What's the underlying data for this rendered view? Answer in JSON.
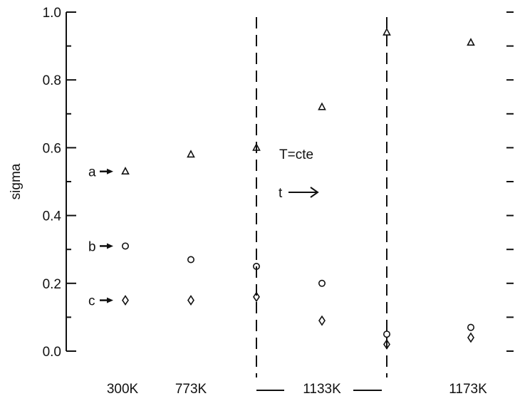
{
  "chart_data": {
    "type": "scatter",
    "ylabel": "sigma",
    "ylim": [
      0.0,
      1.0
    ],
    "y_ticks": [
      "0.0",
      "0.2",
      "0.4",
      "0.6",
      "0.8",
      "1.0"
    ],
    "categories": [
      "300K",
      "773K",
      "1133K",
      "1173K"
    ],
    "x_positions": [
      1.0,
      2.0,
      3.0,
      3.55,
      4.05,
      4.25,
      5.05
    ],
    "series": [
      {
        "marker": "triangle",
        "points": [
          {
            "x": 1.0,
            "y": 0.53
          },
          {
            "x": 2.0,
            "y": 0.58
          },
          {
            "x": 3.0,
            "y": 0.6
          },
          {
            "x": 3.55,
            "y": 0.72
          },
          {
            "x": 4.25,
            "y": 0.94
          },
          {
            "x": 5.05,
            "y": 0.91
          }
        ]
      },
      {
        "marker": "circle",
        "points": [
          {
            "x": 1.0,
            "y": 0.31
          },
          {
            "x": 2.0,
            "y": 0.27
          },
          {
            "x": 3.0,
            "y": 0.25
          },
          {
            "x": 3.55,
            "y": 0.2
          },
          {
            "x": 4.25,
            "y": 0.05
          },
          {
            "x": 5.05,
            "y": 0.07
          }
        ]
      },
      {
        "marker": "diamond",
        "points": [
          {
            "x": 1.0,
            "y": 0.15
          },
          {
            "x": 2.0,
            "y": 0.15
          },
          {
            "x": 3.0,
            "y": 0.16
          },
          {
            "x": 3.55,
            "y": 0.09
          },
          {
            "x": 4.25,
            "y": 0.02
          },
          {
            "x": 5.05,
            "y": 0.04
          }
        ]
      }
    ],
    "row_labels": [
      {
        "text": "a",
        "y": 0.53
      },
      {
        "text": "b",
        "y": 0.31
      },
      {
        "text": "c",
        "y": 0.15
      }
    ],
    "annotations": [
      "T=cte",
      "t"
    ],
    "grid": false,
    "legend": "none"
  },
  "style": {
    "ink": "#111111",
    "background": "#ffffff"
  }
}
